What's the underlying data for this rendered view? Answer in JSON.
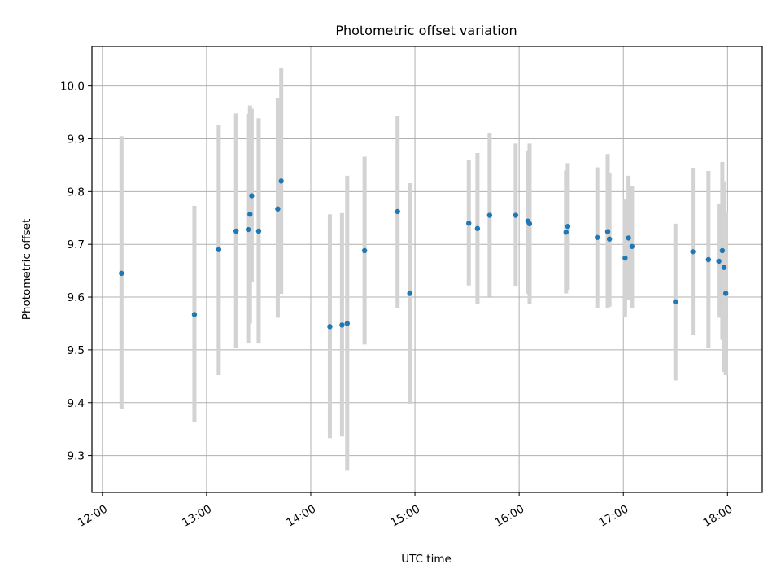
{
  "chart_data": {
    "type": "scatter",
    "title": "Photometric offset variation",
    "xlabel": "UTC time",
    "ylabel": "Photometric offset",
    "x_ticks": [
      "12:00",
      "13:00",
      "14:00",
      "15:00",
      "16:00",
      "17:00",
      "18:00"
    ],
    "y_ticks": [
      "9.3",
      "9.4",
      "9.5",
      "9.6",
      "9.7",
      "9.8",
      "9.9",
      "10.0"
    ],
    "xlim": [
      "11:54",
      "18:20"
    ],
    "ylim": [
      9.23,
      10.075
    ],
    "grid": true,
    "point_color": "#1f77b4",
    "errorbar_color": "#d3d3d3",
    "points": [
      {
        "t": "12:11",
        "y": 9.645,
        "lo": 9.388,
        "hi": 9.905
      },
      {
        "t": "12:53",
        "y": 9.567,
        "lo": 9.363,
        "hi": 9.773
      },
      {
        "t": "13:07",
        "y": 9.69,
        "lo": 9.452,
        "hi": 9.927
      },
      {
        "t": "13:17",
        "y": 9.725,
        "lo": 9.503,
        "hi": 9.948
      },
      {
        "t": "13:24",
        "y": 9.728,
        "lo": 9.512,
        "hi": 9.947
      },
      {
        "t": "13:25",
        "y": 9.757,
        "lo": 9.55,
        "hi": 9.963
      },
      {
        "t": "13:26",
        "y": 9.792,
        "lo": 9.628,
        "hi": 9.957
      },
      {
        "t": "13:30",
        "y": 9.725,
        "lo": 9.512,
        "hi": 9.939
      },
      {
        "t": "13:41",
        "y": 9.767,
        "lo": 9.561,
        "hi": 9.977
      },
      {
        "t": "13:43",
        "y": 9.82,
        "lo": 9.606,
        "hi": 10.035
      },
      {
        "t": "14:11",
        "y": 9.544,
        "lo": 9.333,
        "hi": 9.757
      },
      {
        "t": "14:18",
        "y": 9.547,
        "lo": 9.336,
        "hi": 9.759
      },
      {
        "t": "14:21",
        "y": 9.55,
        "lo": 9.271,
        "hi": 9.83
      },
      {
        "t": "14:31",
        "y": 9.688,
        "lo": 9.51,
        "hi": 9.866
      },
      {
        "t": "14:50",
        "y": 9.762,
        "lo": 9.58,
        "hi": 9.944
      },
      {
        "t": "14:57",
        "y": 9.607,
        "lo": 9.398,
        "hi": 9.816
      },
      {
        "t": "15:31",
        "y": 9.74,
        "lo": 9.622,
        "hi": 9.86
      },
      {
        "t": "15:36",
        "y": 9.73,
        "lo": 9.587,
        "hi": 9.873
      },
      {
        "t": "15:43",
        "y": 9.755,
        "lo": 9.601,
        "hi": 9.91
      },
      {
        "t": "15:58",
        "y": 9.755,
        "lo": 9.62,
        "hi": 9.891
      },
      {
        "t": "16:05",
        "y": 9.744,
        "lo": 9.606,
        "hi": 9.878
      },
      {
        "t": "16:06",
        "y": 9.739,
        "lo": 9.587,
        "hi": 9.891
      },
      {
        "t": "16:27",
        "y": 9.723,
        "lo": 9.607,
        "hi": 9.84
      },
      {
        "t": "16:28",
        "y": 9.734,
        "lo": 9.614,
        "hi": 9.854
      },
      {
        "t": "16:45",
        "y": 9.713,
        "lo": 9.579,
        "hi": 9.846
      },
      {
        "t": "16:51",
        "y": 9.724,
        "lo": 9.579,
        "hi": 9.871
      },
      {
        "t": "16:52",
        "y": 9.71,
        "lo": 9.582,
        "hi": 9.836
      },
      {
        "t": "17:01",
        "y": 9.674,
        "lo": 9.563,
        "hi": 9.785
      },
      {
        "t": "17:03",
        "y": 9.712,
        "lo": 9.595,
        "hi": 9.83
      },
      {
        "t": "17:05",
        "y": 9.696,
        "lo": 9.58,
        "hi": 9.811
      },
      {
        "t": "17:30",
        "y": 9.591,
        "lo": 9.442,
        "hi": 9.739
      },
      {
        "t": "17:40",
        "y": 9.686,
        "lo": 9.528,
        "hi": 9.844
      },
      {
        "t": "17:49",
        "y": 9.671,
        "lo": 9.503,
        "hi": 9.839
      },
      {
        "t": "17:55",
        "y": 9.668,
        "lo": 9.561,
        "hi": 9.776
      },
      {
        "t": "17:57",
        "y": 9.688,
        "lo": 9.519,
        "hi": 9.856
      },
      {
        "t": "17:58",
        "y": 9.656,
        "lo": 9.458,
        "hi": 9.818
      },
      {
        "t": "17:59",
        "y": 9.607,
        "lo": 9.452,
        "hi": 9.762
      }
    ]
  }
}
